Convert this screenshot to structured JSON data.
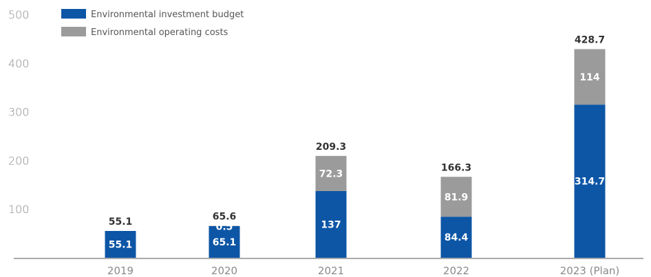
{
  "chart_data": {
    "type": "bar",
    "stacked": true,
    "categories": [
      "2019",
      "2020",
      "2021",
      "2022",
      "2023 (Plan)"
    ],
    "series": [
      {
        "name": "Environmental investment budget",
        "values": [
          55.1,
          65.1,
          137,
          84.4,
          314.7
        ],
        "labels": [
          "55.1",
          "65.1",
          "137",
          "84.4",
          "314.7"
        ]
      },
      {
        "name": "Environmental operating costs",
        "values": [
          0,
          0.5,
          72.3,
          81.9,
          114
        ],
        "labels": [
          "",
          "0.5",
          "72.3",
          "81.9",
          "114"
        ]
      }
    ],
    "totals": [
      55.1,
      65.6,
      209.3,
      166.3,
      428.7
    ],
    "total_labels": [
      "55.1",
      "65.6",
      "209.3",
      "166.3",
      "428.7"
    ],
    "yticks": [
      "100",
      "200",
      "300",
      "400",
      "500"
    ],
    "ylim": [
      0,
      500
    ],
    "grid": false,
    "legend_position": "top-left",
    "colors": {
      "investment": "#0d56a6",
      "operating": "#9b9b9b",
      "axis": "#555555"
    }
  }
}
